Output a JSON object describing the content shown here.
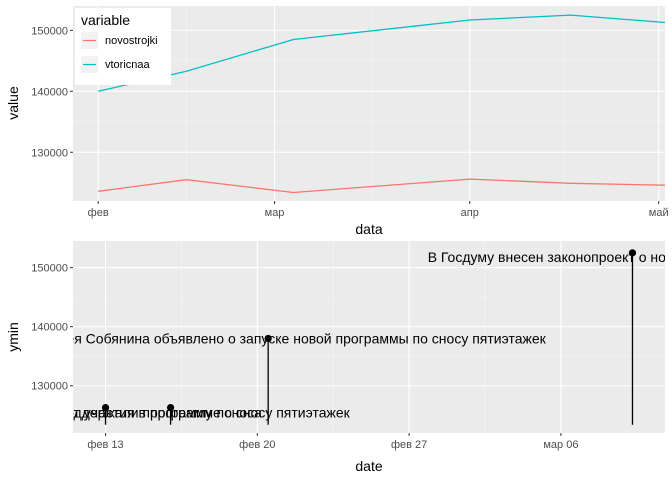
{
  "chart_data": [
    {
      "type": "line",
      "xlabel": "data",
      "ylabel": "value",
      "x_ticks": [
        {
          "label": "фев",
          "day": 31
        },
        {
          "label": "мар",
          "day": 59
        },
        {
          "label": "апр",
          "day": 90
        },
        {
          "label": "май",
          "day": 120
        }
      ],
      "y_ticks": [
        130000,
        140000,
        150000
      ],
      "xlim": [
        27,
        121
      ],
      "ylim": [
        122000,
        154000
      ],
      "legend": {
        "title": "variable",
        "position": "top-left"
      },
      "grid": true,
      "series": [
        {
          "name": "novostrojki",
          "color": "#F8766D",
          "points": [
            [
              31,
              123600
            ],
            [
              45,
              125500
            ],
            [
              62,
              123400
            ],
            [
              90,
              125600
            ],
            [
              106,
              124900
            ],
            [
              121,
              124600
            ]
          ]
        },
        {
          "name": "vtoricnaa",
          "color": "#00BFC4",
          "points": [
            [
              31,
              140000
            ],
            [
              45,
              143300
            ],
            [
              62,
              148500
            ],
            [
              90,
              151700
            ],
            [
              106,
              152500
            ],
            [
              121,
              151300
            ]
          ]
        }
      ]
    },
    {
      "type": "scatter",
      "xlabel": "date",
      "ylabel": "ymin",
      "x_ticks": [
        {
          "label": "фев 13",
          "day": 44
        },
        {
          "label": "фев 20",
          "day": 51
        },
        {
          "label": "фев 27",
          "day": 58
        },
        {
          "label": "мар 06",
          "day": 65
        }
      ],
      "y_ticks": [
        130000,
        140000,
        150000
      ],
      "xlim": [
        42.5,
        69.8
      ],
      "ylim": [
        122000,
        154500
      ],
      "grid": true,
      "baseline": 123400,
      "events": [
        {
          "day": 44,
          "value": 126300,
          "label_y": 125500,
          "label": "ласть отказалась от участия в программе сноса"
        },
        {
          "day": 47,
          "value": 126300,
          "label_y": 125500,
          "label": "Москвичи поддержали программу по сносу пятиэтажек"
        },
        {
          "day": 51.5,
          "value": 138000,
          "label_y": 138000,
          "label": "тина и Сергея Собянина объявлено о запуске новой программы по сносу пятиэтажек"
        },
        {
          "day": 68.3,
          "value": 152500,
          "label_y": 151800,
          "label": "В Госдуму внесен законопроект о новой программе реновации"
        }
      ]
    }
  ]
}
